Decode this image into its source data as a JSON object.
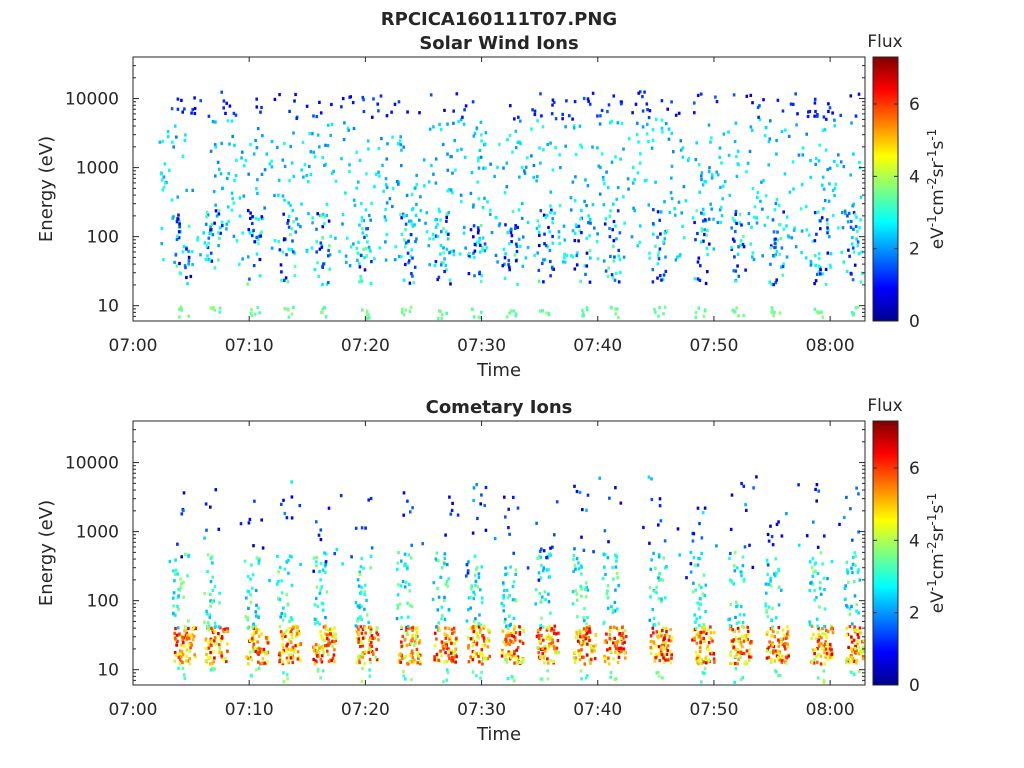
{
  "figure": {
    "filename": "RPCICA160111T07.PNG"
  },
  "chart_data": [
    {
      "type": "heatmap",
      "title": "Solar Wind Ions",
      "xlabel": "Time",
      "ylabel": "Energy (eV)",
      "x_ticks": [
        "07:00",
        "07:10",
        "07:20",
        "07:30",
        "07:40",
        "07:50",
        "08:00"
      ],
      "x_range": [
        "07:00",
        "08:03"
      ],
      "y_scale": "log",
      "y_ticks": [
        "10",
        "100",
        "1000",
        "10000"
      ],
      "y_range": [
        6,
        40000
      ],
      "colorbar": {
        "title": "Flux",
        "label": "eV-1 cm-2 sr-1 s-1",
        "ticks": [
          "0",
          "2",
          "4",
          "6"
        ],
        "range": [
          0,
          7.3
        ],
        "colormap": "jet"
      },
      "grid": false,
      "sweep_minutes": [
        4.2,
        6.9,
        10.4,
        13.2,
        16.2,
        19.9,
        23.5,
        26.6,
        29.5,
        32.4,
        35.4,
        38.6,
        41.2,
        45.2,
        48.8,
        52.0,
        55.2,
        59.0,
        62.0
      ],
      "colors": {
        "background": "#ffffff",
        "axis": "#262626"
      }
    },
    {
      "type": "heatmap",
      "title": "Cometary Ions",
      "xlabel": "Time",
      "ylabel": "Energy (eV)",
      "x_ticks": [
        "07:00",
        "07:10",
        "07:20",
        "07:30",
        "07:40",
        "07:50",
        "08:00"
      ],
      "x_range": [
        "07:00",
        "08:03"
      ],
      "y_scale": "log",
      "y_ticks": [
        "10",
        "100",
        "1000",
        "10000"
      ],
      "y_range": [
        6,
        40000
      ],
      "colorbar": {
        "title": "Flux",
        "label": "eV-1 cm-2 sr-1 s-1",
        "ticks": [
          "0",
          "2",
          "4",
          "6"
        ],
        "range": [
          0,
          7.3
        ],
        "colormap": "jet"
      },
      "grid": false,
      "sweep_minutes": [
        4.2,
        6.9,
        10.4,
        13.2,
        16.2,
        19.9,
        23.5,
        26.6,
        29.5,
        32.4,
        35.4,
        38.6,
        41.2,
        45.2,
        48.8,
        52.0,
        55.2,
        59.0,
        62.0
      ],
      "colors": {
        "background": "#ffffff",
        "axis": "#262626"
      }
    }
  ]
}
